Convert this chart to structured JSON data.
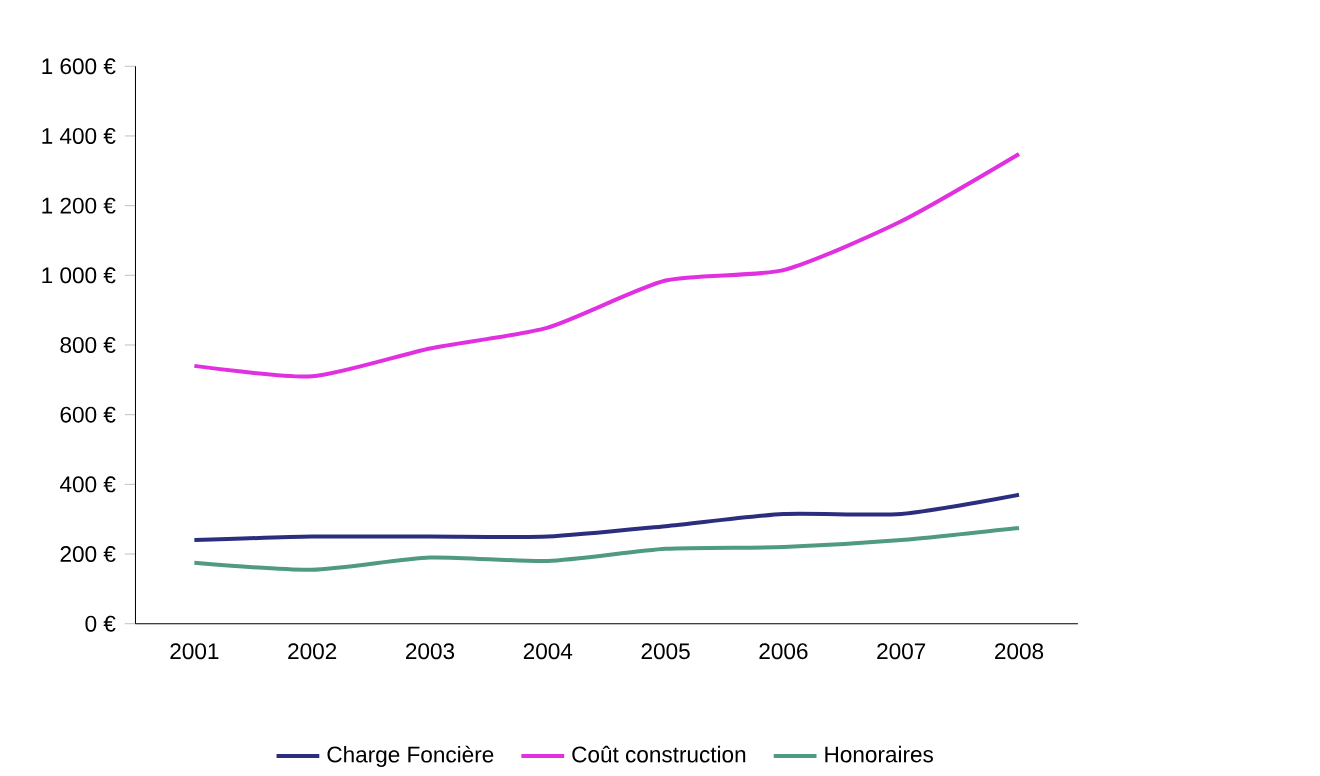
{
  "chart_data": {
    "type": "line",
    "categories": [
      "2001",
      "2002",
      "2003",
      "2004",
      "2005",
      "2006",
      "2007",
      "2008"
    ],
    "series": [
      {
        "name": "Charge Foncière",
        "color": "#2b2d7e",
        "values": [
          240,
          250,
          250,
          250,
          280,
          315,
          315,
          370
        ]
      },
      {
        "name": "Coût construction",
        "color": "#e030e0",
        "values": [
          740,
          710,
          790,
          850,
          985,
          1015,
          1155,
          1348
        ]
      },
      {
        "name": "Honoraires",
        "color": "#4f9a80",
        "values": [
          175,
          155,
          190,
          180,
          215,
          220,
          240,
          275
        ]
      }
    ],
    "ylim": [
      0,
      1600
    ],
    "yticks": [
      {
        "value": 0,
        "label": "0 €"
      },
      {
        "value": 200,
        "label": "200 €"
      },
      {
        "value": 400,
        "label": "400 €"
      },
      {
        "value": 600,
        "label": "600 €"
      },
      {
        "value": 800,
        "label": "800 €"
      },
      {
        "value": 1000,
        "label": "1 000 €"
      },
      {
        "value": 1200,
        "label": "1 200 €"
      },
      {
        "value": 1400,
        "label": "1 400 €"
      },
      {
        "value": 1600,
        "label": "1 600 €"
      }
    ],
    "legend": "bottom",
    "marker": "none",
    "line_style": "solid",
    "grid": false
  }
}
